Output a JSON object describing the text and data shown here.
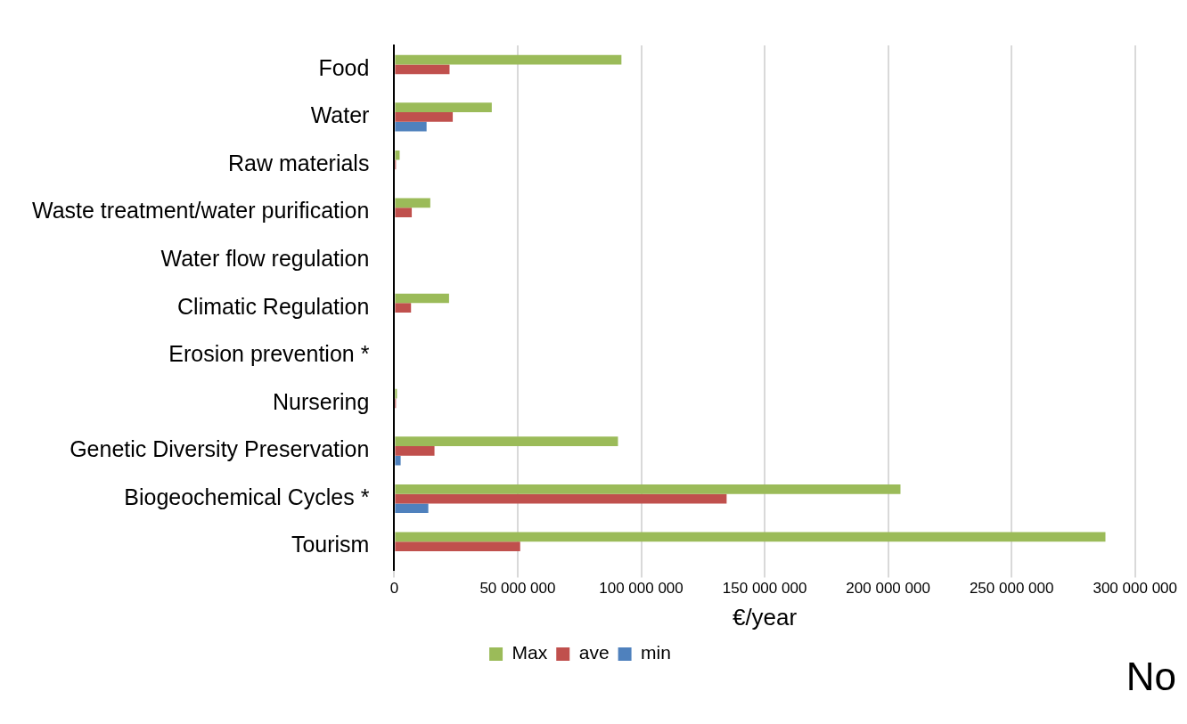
{
  "chart_data": {
    "type": "bar",
    "orientation": "horizontal",
    "categories": [
      "Food",
      "Water",
      "Raw materials",
      "Waste treatment/water purification",
      "Water flow regulation",
      "Climatic Regulation",
      "Erosion prevention *",
      "Nursering",
      "Genetic Diversity Preservation",
      "Biogeochemical Cycles *",
      "Tourism"
    ],
    "series": [
      {
        "name": "Max",
        "color": "#9bbb59",
        "values": [
          92000000,
          39500000,
          2200000,
          14600000,
          0,
          22200000,
          0,
          1100000,
          90600000,
          205000000,
          288000000
        ]
      },
      {
        "name": "ave",
        "color": "#c0504d",
        "values": [
          22400000,
          23700000,
          700000,
          7100000,
          0,
          6800000,
          0,
          700000,
          16300000,
          134600000,
          51000000
        ]
      },
      {
        "name": "min",
        "color": "#4f81bd",
        "values": [
          0,
          13100000,
          0,
          null,
          0,
          0,
          0,
          null,
          2600000,
          13800000,
          0
        ]
      }
    ],
    "xlabel": "€/year",
    "xlim": [
      0,
      300000000
    ],
    "xticks": [
      0,
      {
        "value": 50000000,
        "label": "50 000 000"
      },
      {
        "value": 100000000,
        "label": "100 000 000"
      },
      {
        "value": 150000000,
        "label": "150 000 000"
      },
      {
        "value": 200000000,
        "label": "200 000 000"
      },
      {
        "value": 250000000,
        "label": "250 000 000"
      },
      {
        "value": 300000000,
        "label": "300 000 000"
      }
    ],
    "grid": "x",
    "legend": "bottom",
    "annotations": [
      "No"
    ]
  }
}
